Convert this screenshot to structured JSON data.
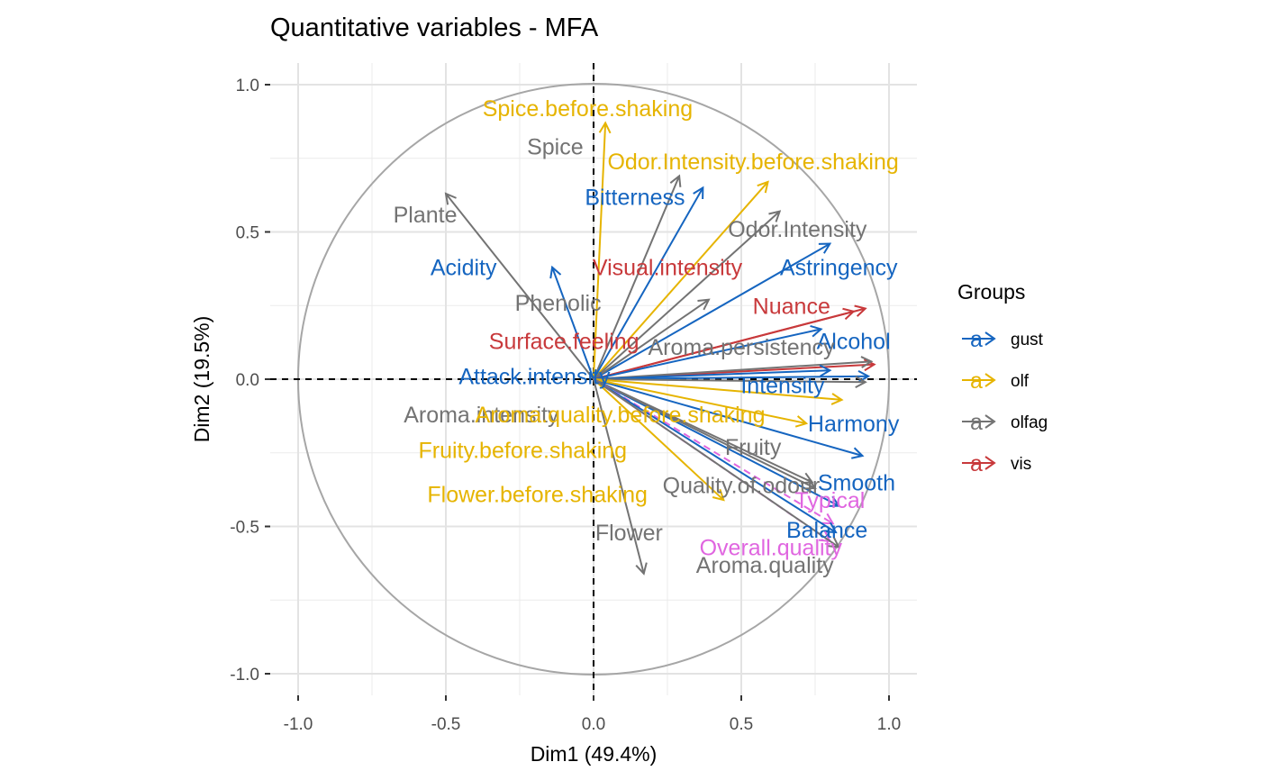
{
  "chart_data": {
    "type": "scatter",
    "title": "Quantitative variables - MFA",
    "xlabel": "Dim1 (49.4%)",
    "ylabel": "Dim2 (19.5%)",
    "xlim": [
      -1.0,
      1.0
    ],
    "ylim": [
      -1.0,
      1.0
    ],
    "xticks": [
      -1.0,
      -0.5,
      0.0,
      0.5,
      1.0
    ],
    "yticks": [
      -1.0,
      -0.5,
      0.0,
      0.5,
      1.0
    ],
    "xtick_labels": [
      "-1.0",
      "-0.5",
      "0.0",
      "0.5",
      "1.0"
    ],
    "ytick_labels": [
      "-1.0",
      "-0.5",
      "0.0",
      "0.5",
      "1.0"
    ],
    "grid": true,
    "unit_circle": true,
    "legend": {
      "title": "Groups",
      "placement": "right",
      "key_glyph": "a",
      "entries": [
        {
          "name": "gust",
          "color": "#1565c0"
        },
        {
          "name": "olf",
          "color": "#e6b400"
        },
        {
          "name": "olfag",
          "color": "#737373"
        },
        {
          "name": "vis",
          "color": "#c8393b"
        }
      ]
    },
    "supplementary_color": "#e066e0",
    "variables": [
      {
        "name": "Spice.before.shaking",
        "group": "olf",
        "x": 0.04,
        "y": 0.87,
        "lx": -0.02,
        "ly": 0.92
      },
      {
        "name": "Spice",
        "group": "olfag",
        "x": 0.29,
        "y": 0.69,
        "lx": -0.13,
        "ly": 0.79
      },
      {
        "name": "Odor.Intensity.before.shaking",
        "group": "olf",
        "x": 0.59,
        "y": 0.67,
        "lx": 0.54,
        "ly": 0.74
      },
      {
        "name": "Bitterness",
        "group": "gust",
        "x": 0.37,
        "y": 0.65,
        "lx": 0.14,
        "ly": 0.62
      },
      {
        "name": "Plante",
        "group": "olfag",
        "x": -0.5,
        "y": 0.63,
        "lx": -0.57,
        "ly": 0.56
      },
      {
        "name": "Odor.Intensity",
        "group": "olfag",
        "x": 0.63,
        "y": 0.57,
        "lx": 0.69,
        "ly": 0.51
      },
      {
        "name": "Astringency",
        "group": "gust",
        "x": 0.8,
        "y": 0.46,
        "lx": 0.83,
        "ly": 0.38
      },
      {
        "name": "Acidity",
        "group": "gust",
        "x": -0.14,
        "y": 0.38,
        "lx": -0.44,
        "ly": 0.38
      },
      {
        "name": "Visual.intensity",
        "group": "vis",
        "x": 0.92,
        "y": 0.24,
        "lx": 0.25,
        "ly": 0.38
      },
      {
        "name": "Phenolic",
        "group": "olfag",
        "x": 0.39,
        "y": 0.27,
        "lx": -0.12,
        "ly": 0.26
      },
      {
        "name": "Nuance",
        "group": "vis",
        "x": 0.88,
        "y": 0.23,
        "lx": 0.67,
        "ly": 0.25
      },
      {
        "name": "Alcohol",
        "group": "gust",
        "x": 0.77,
        "y": 0.17,
        "lx": 0.88,
        "ly": 0.13
      },
      {
        "name": "Surface.feeling",
        "group": "vis",
        "x": 0.95,
        "y": 0.05,
        "lx": -0.1,
        "ly": 0.13
      },
      {
        "name": "Aroma.persistency",
        "group": "olfag",
        "x": 0.94,
        "y": 0.06,
        "lx": 0.5,
        "ly": 0.11
      },
      {
        "name": "Attack.intensity",
        "group": "gust",
        "x": 0.8,
        "y": 0.03,
        "lx": -0.2,
        "ly": 0.01
      },
      {
        "name": "Intensity",
        "group": "gust",
        "x": 0.93,
        "y": 0.01,
        "lx": 0.64,
        "ly": -0.02
      },
      {
        "name": "Aroma.intensity",
        "group": "olfag",
        "x": 0.92,
        "y": -0.01,
        "lx": -0.38,
        "ly": -0.12
      },
      {
        "name": "Aroma.quality.before.shaking",
        "group": "olf",
        "x": 0.84,
        "y": -0.07,
        "lx": 0.09,
        "ly": -0.12
      },
      {
        "name": "Harmony",
        "group": "gust",
        "x": 0.91,
        "y": -0.26,
        "lx": 0.88,
        "ly": -0.15
      },
      {
        "name": "Fruity.before.shaking",
        "group": "olf",
        "x": 0.72,
        "y": -0.15,
        "lx": -0.24,
        "ly": -0.24
      },
      {
        "name": "Fruity",
        "group": "olfag",
        "x": 0.74,
        "y": -0.35,
        "lx": 0.54,
        "ly": -0.23
      },
      {
        "name": "Smooth",
        "group": "gust",
        "x": 0.83,
        "y": -0.43,
        "lx": 0.89,
        "ly": -0.35
      },
      {
        "name": "Quality.of.odour",
        "group": "olfag",
        "x": 0.75,
        "y": -0.37,
        "lx": 0.5,
        "ly": -0.36
      },
      {
        "name": "Flower.before.shaking",
        "group": "olf",
        "x": 0.44,
        "y": -0.41,
        "lx": -0.19,
        "ly": -0.39
      },
      {
        "name": "Typical",
        "group": "supp",
        "x": 0.81,
        "y": -0.49,
        "lx": 0.8,
        "ly": -0.41
      },
      {
        "name": "Balance",
        "group": "gust",
        "x": 0.82,
        "y": -0.52,
        "lx": 0.79,
        "ly": -0.51
      },
      {
        "name": "Flower",
        "group": "olfag",
        "x": 0.17,
        "y": -0.66,
        "lx": 0.12,
        "ly": -0.52
      },
      {
        "name": "Overall.quality",
        "group": "supp",
        "x": 0.8,
        "y": -0.55,
        "lx": 0.6,
        "ly": -0.57
      },
      {
        "name": "Aroma.quality",
        "group": "olfag",
        "x": 0.83,
        "y": -0.57,
        "lx": 0.58,
        "ly": -0.63
      }
    ]
  }
}
